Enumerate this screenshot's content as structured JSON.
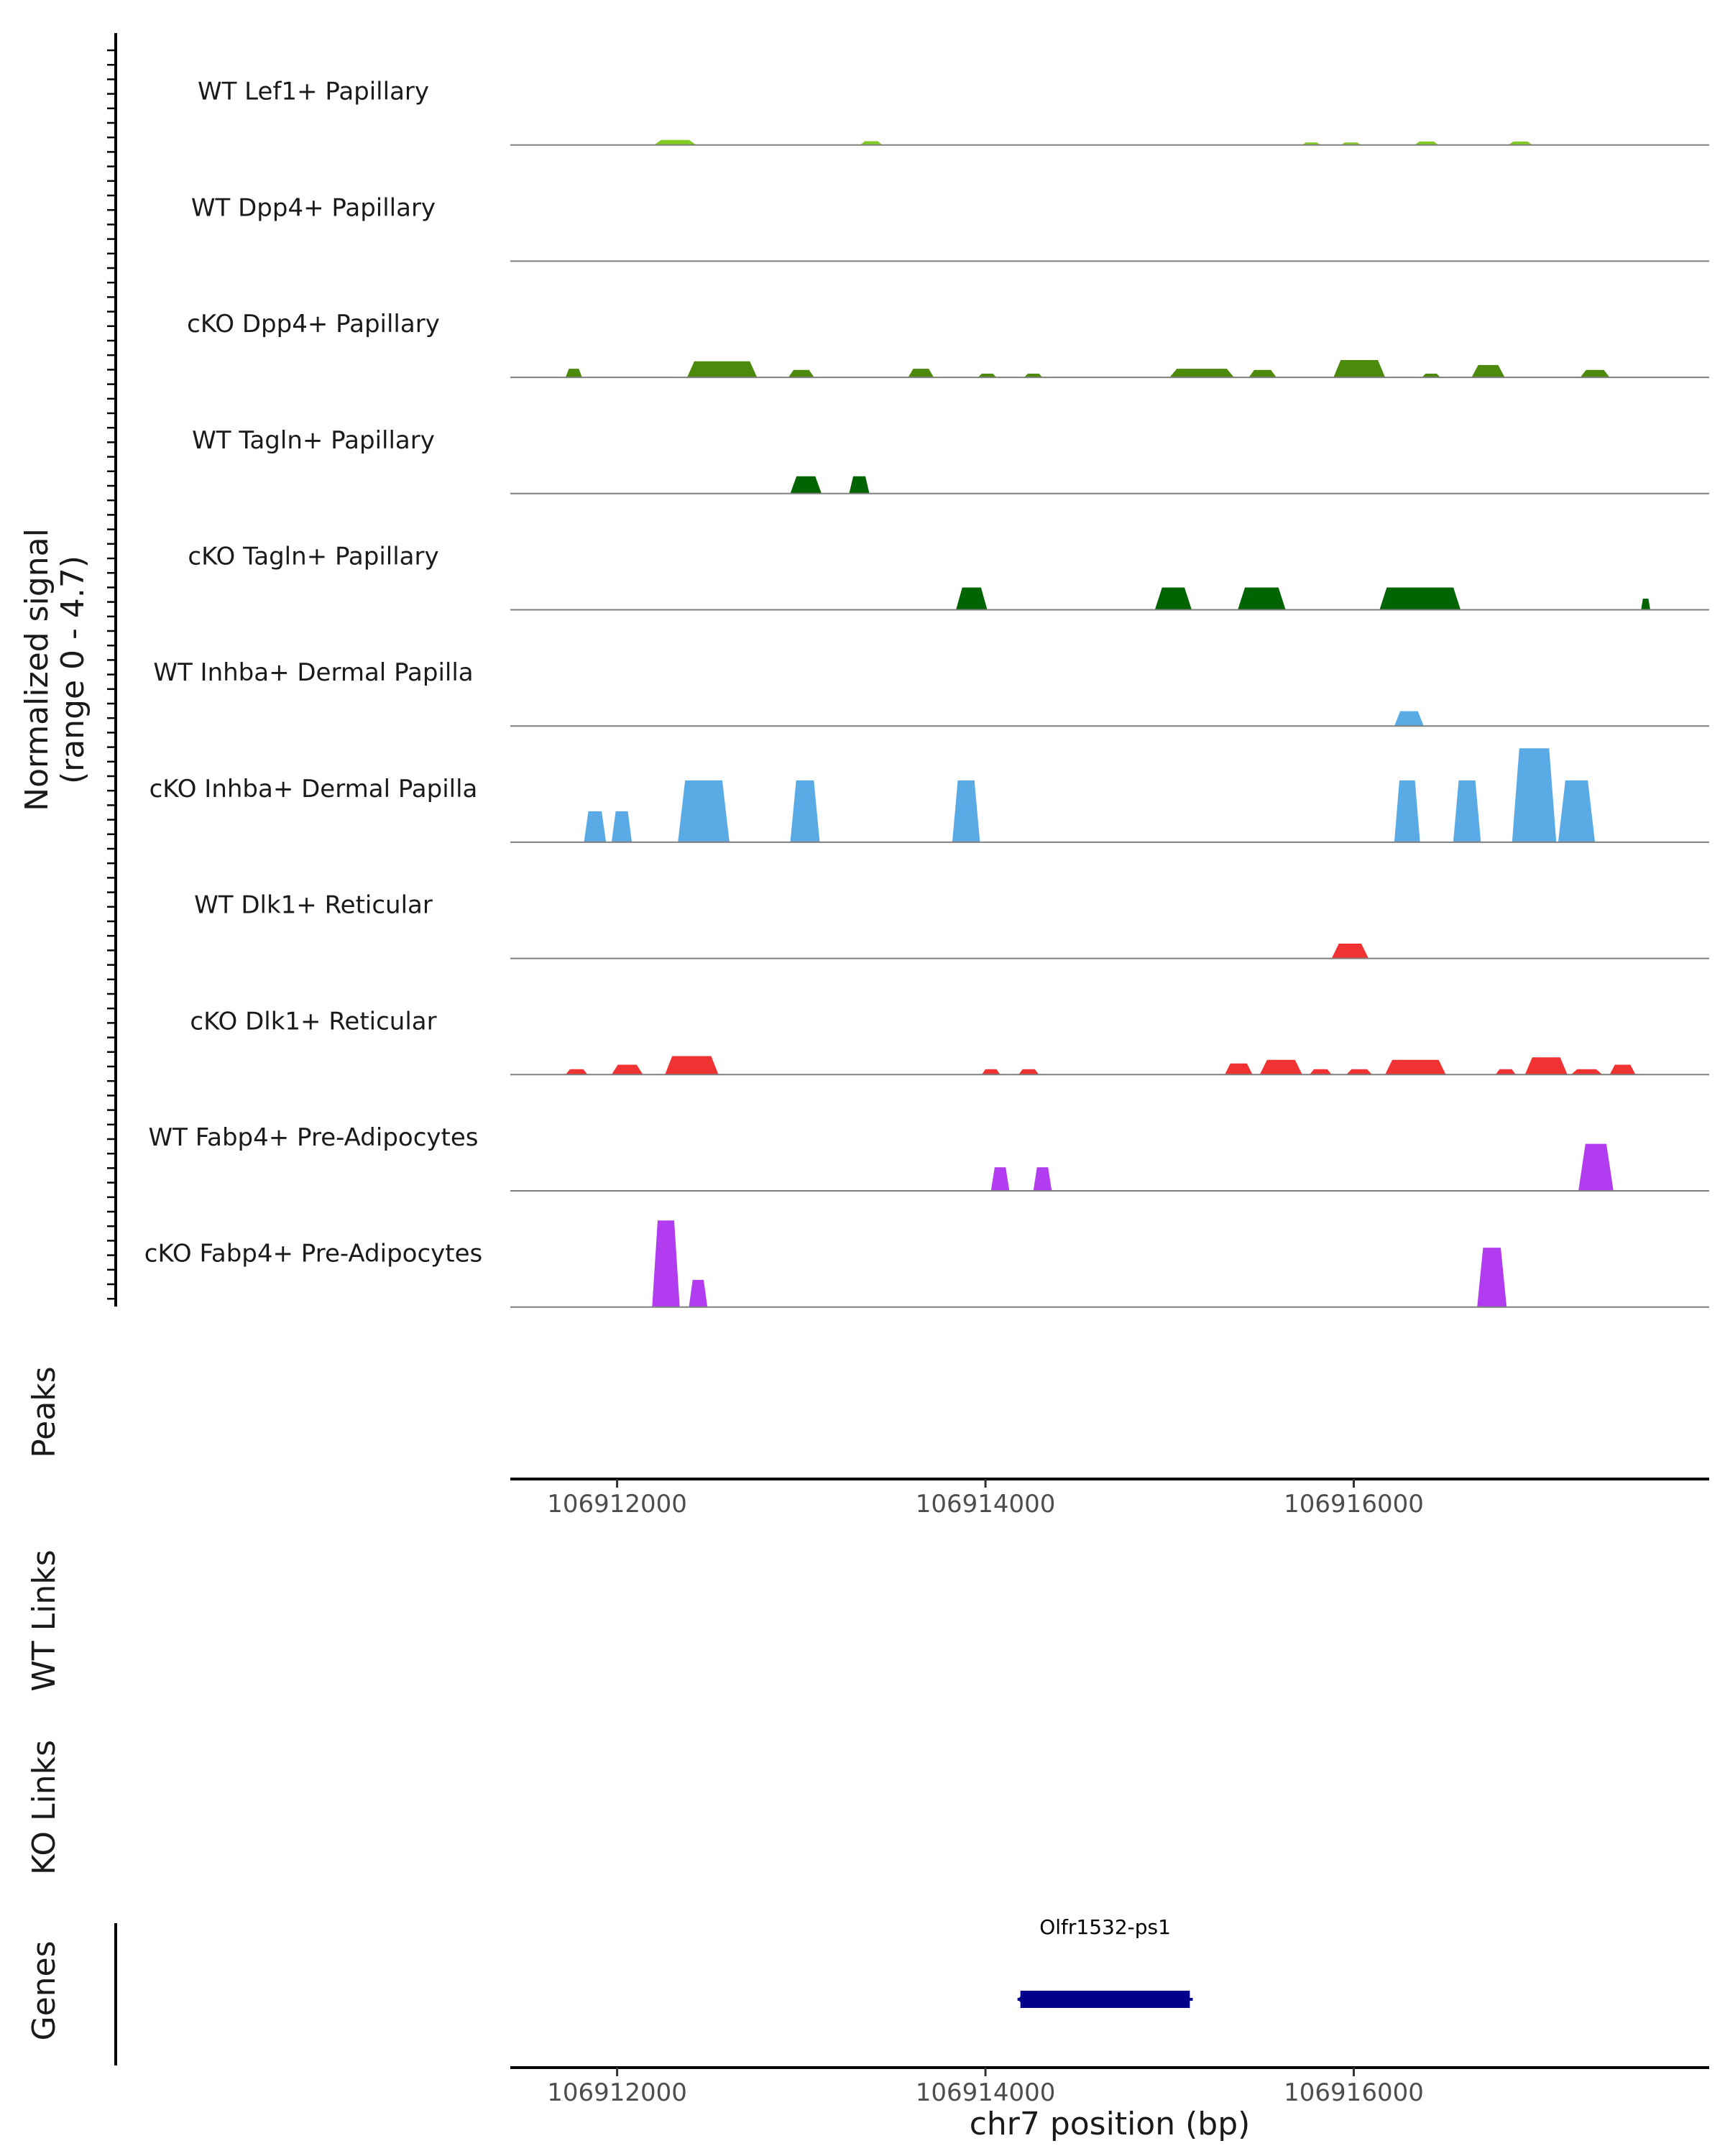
{
  "chart_data": {
    "type": "area",
    "title": "",
    "signal_ylabel": [
      "Normalized signal",
      "(range 0 - 4.7)"
    ],
    "ylim": [
      0,
      4.7
    ],
    "xlim": [
      106911420,
      106917930
    ],
    "xlabel": "chr7 position (bp)",
    "x_ticks": [
      106912000,
      106914000,
      106916000
    ],
    "x_tick_labels": [
      "106912000",
      "106914000",
      "106916000"
    ],
    "tracks": [
      {
        "name": "WT Lef1+ Papillary",
        "color": "#7fcd1f",
        "peaks": [
          [
            106912200,
            106912430,
            0.2
          ],
          [
            106913320,
            106913440,
            0.15
          ],
          [
            106915720,
            106915820,
            0.1
          ],
          [
            106915930,
            106916040,
            0.1
          ],
          [
            106916330,
            106916460,
            0.14
          ],
          [
            106916840,
            106916970,
            0.14
          ]
        ]
      },
      {
        "name": "WT Dpp4+ Papillary",
        "color": "#4b8a0a",
        "peaks": []
      },
      {
        "name": "cKO Dpp4+ Papillary",
        "color": "#4b8a0a",
        "peaks": [
          [
            106911720,
            106911810,
            0.35
          ],
          [
            106912380,
            106912760,
            0.65
          ],
          [
            106912930,
            106913070,
            0.3
          ],
          [
            106913580,
            106913720,
            0.35
          ],
          [
            106913960,
            106914060,
            0.15
          ],
          [
            106914210,
            106914310,
            0.15
          ],
          [
            106915000,
            106915350,
            0.35
          ],
          [
            106915430,
            106915580,
            0.3
          ],
          [
            106915890,
            106916170,
            0.7
          ],
          [
            106916370,
            106916470,
            0.15
          ],
          [
            106916640,
            106916820,
            0.5
          ],
          [
            106917230,
            106917390,
            0.3
          ]
        ]
      },
      {
        "name": "WT Tagln+ Papillary",
        "color": "#006400",
        "peaks": [
          [
            106912940,
            106913110,
            0.7
          ],
          [
            106913260,
            106913370,
            0.7
          ]
        ]
      },
      {
        "name": "cKO Tagln+ Papillary",
        "color": "#006400",
        "peaks": [
          [
            106913840,
            106914010,
            0.9
          ],
          [
            106914920,
            106915120,
            0.9
          ],
          [
            106915370,
            106915630,
            0.9
          ],
          [
            106916140,
            106916580,
            0.9
          ],
          [
            106917560,
            106917610,
            0.45
          ]
        ]
      },
      {
        "name": "WT Inhba+ Dermal Papilla",
        "color": "#5aaae6",
        "peaks": [
          [
            106916220,
            106916380,
            0.6
          ]
        ]
      },
      {
        "name": "cKO Inhba+ Dermal Papilla",
        "color": "#5aaae6",
        "peaks": [
          [
            106911820,
            106911940,
            1.25
          ],
          [
            106911970,
            106912080,
            1.25
          ],
          [
            106912330,
            106912610,
            2.5
          ],
          [
            106912940,
            106913100,
            2.5
          ],
          [
            106913820,
            106913970,
            2.5
          ],
          [
            106916220,
            106916360,
            2.5
          ],
          [
            106916540,
            106916690,
            2.5
          ],
          [
            106916860,
            106917100,
            3.8
          ],
          [
            106917110,
            106917310,
            2.5
          ]
        ]
      },
      {
        "name": "WT Dlk1+ Reticular",
        "color": "#f03232",
        "peaks": [
          [
            106915880,
            106916080,
            0.6
          ]
        ]
      },
      {
        "name": "cKO Dlk1+ Reticular",
        "color": "#f03232",
        "peaks": [
          [
            106911720,
            106911840,
            0.22
          ],
          [
            106911970,
            106912140,
            0.4
          ],
          [
            106912260,
            106912550,
            0.75
          ],
          [
            106913980,
            106914080,
            0.22
          ],
          [
            106914180,
            106914290,
            0.22
          ],
          [
            106915300,
            106915450,
            0.45
          ],
          [
            106915490,
            106915720,
            0.6
          ],
          [
            106915760,
            106915880,
            0.22
          ],
          [
            106915960,
            106916100,
            0.22
          ],
          [
            106916170,
            106916500,
            0.6
          ],
          [
            106916770,
            106916880,
            0.22
          ],
          [
            106916930,
            106917160,
            0.7
          ],
          [
            106917180,
            106917350,
            0.22
          ],
          [
            106917390,
            106917530,
            0.4
          ]
        ]
      },
      {
        "name": "WT Fabp4+ Pre-Adipocytes",
        "color": "#b23cef",
        "peaks": [
          [
            106914030,
            106914130,
            0.95
          ],
          [
            106914260,
            106914360,
            0.95
          ],
          [
            106917220,
            106917410,
            1.9
          ]
        ]
      },
      {
        "name": "cKO Fabp4+ Pre-Adipocytes",
        "color": "#b23cef",
        "peaks": [
          [
            106912190,
            106912340,
            3.5
          ],
          [
            106912390,
            106912490,
            1.1
          ],
          [
            106916670,
            106916830,
            2.4
          ]
        ]
      }
    ],
    "peaks_label": "Peaks",
    "wt_links_label": "WT Links",
    "ko_links_label": "KO Links",
    "genes_label": "Genes",
    "genes": [
      {
        "name": "Olfr1532-ps1",
        "start": 106914190,
        "end": 106915110,
        "color": "#00008b",
        "strand": "-"
      }
    ]
  }
}
